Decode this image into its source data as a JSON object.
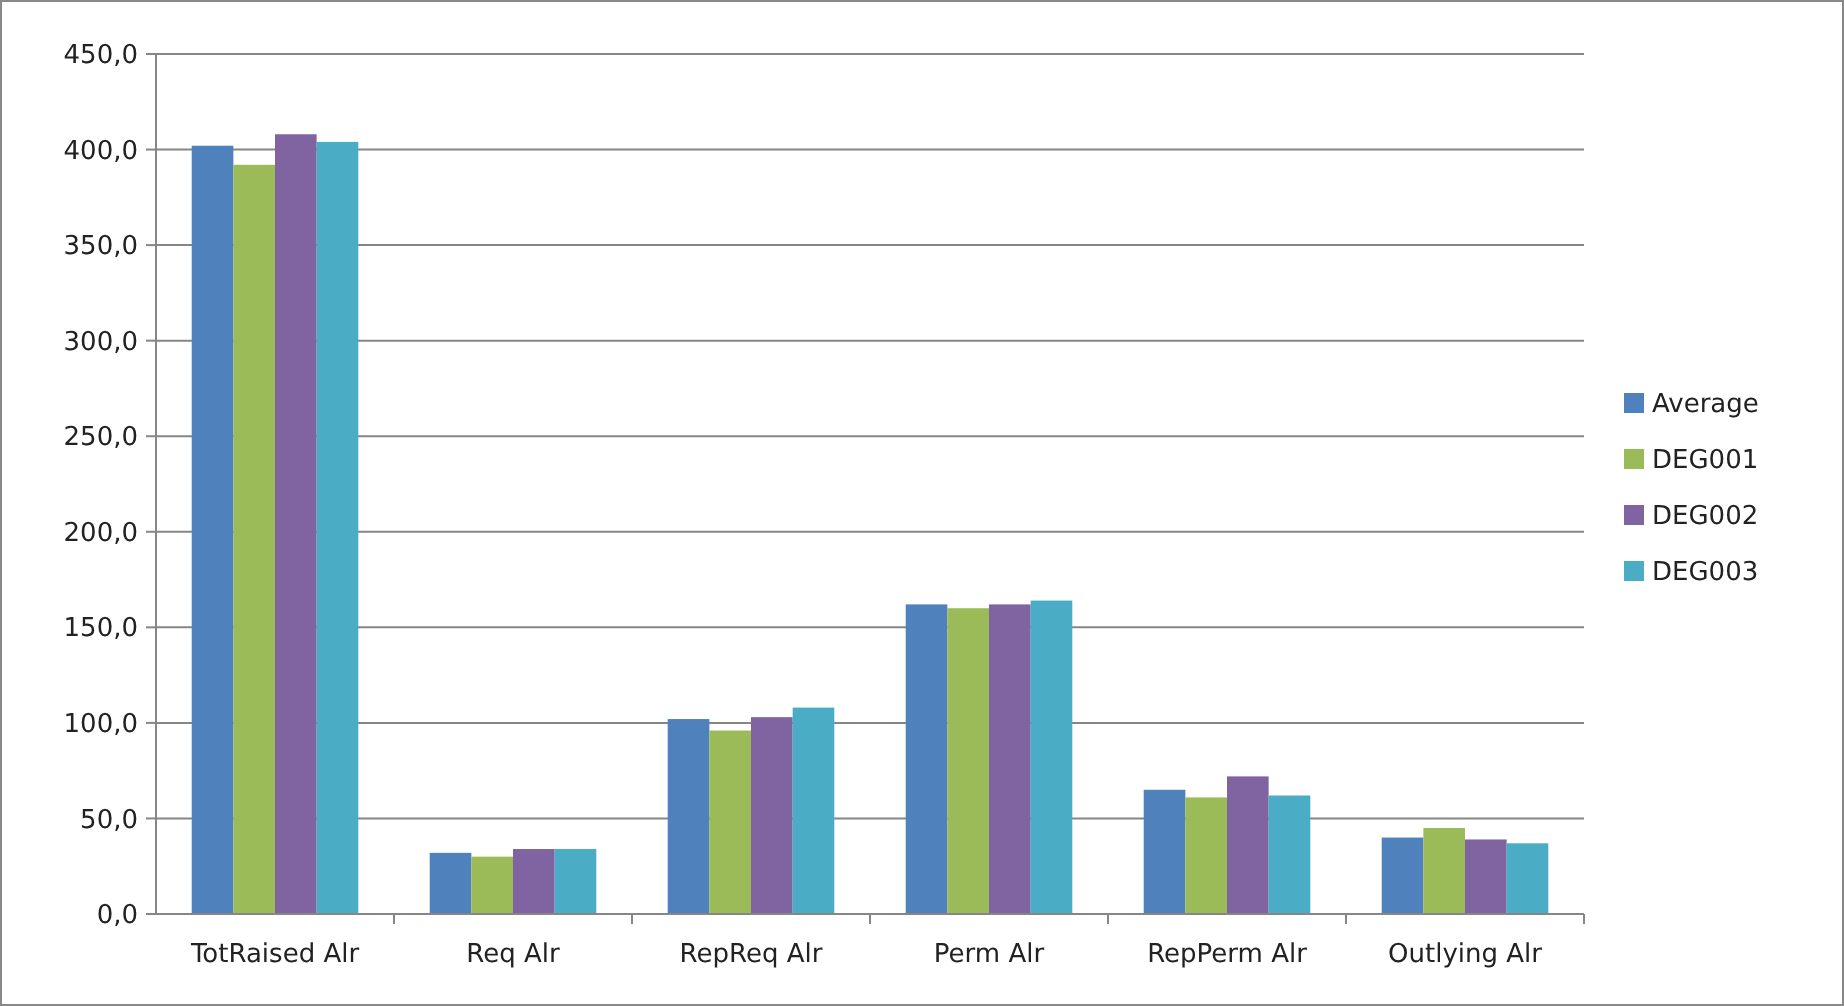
{
  "chart_data": {
    "type": "bar",
    "categories": [
      "TotRaised Alr",
      "Req Alr",
      "RepReq Alr",
      "Perm Alr",
      "RepPerm Alr",
      "Outlying Alr"
    ],
    "series": [
      {
        "name": "Average",
        "color": "#4f81bd",
        "values": [
          402,
          32,
          102,
          162,
          65,
          40
        ]
      },
      {
        "name": "DEG001",
        "color": "#9bbb59",
        "values": [
          392,
          30,
          96,
          160,
          61,
          45
        ]
      },
      {
        "name": "DEG002",
        "color": "#8064a2",
        "values": [
          408,
          34,
          103,
          162,
          72,
          39
        ]
      },
      {
        "name": "DEG003",
        "color": "#4bacc6",
        "values": [
          404,
          34,
          108,
          164,
          62,
          37
        ]
      }
    ],
    "ylim": [
      0,
      450
    ],
    "yticks": [
      {
        "value": 0,
        "label": "0,0"
      },
      {
        "value": 50,
        "label": "50,0"
      },
      {
        "value": 100,
        "label": "100,0"
      },
      {
        "value": 150,
        "label": "150,0"
      },
      {
        "value": 200,
        "label": "200,0"
      },
      {
        "value": 250,
        "label": "250,0"
      },
      {
        "value": 300,
        "label": "300,0"
      },
      {
        "value": 350,
        "label": "350,0"
      },
      {
        "value": 400,
        "label": "400,0"
      },
      {
        "value": 450,
        "label": "450,0"
      }
    ],
    "grid": "y",
    "legend": "right"
  }
}
